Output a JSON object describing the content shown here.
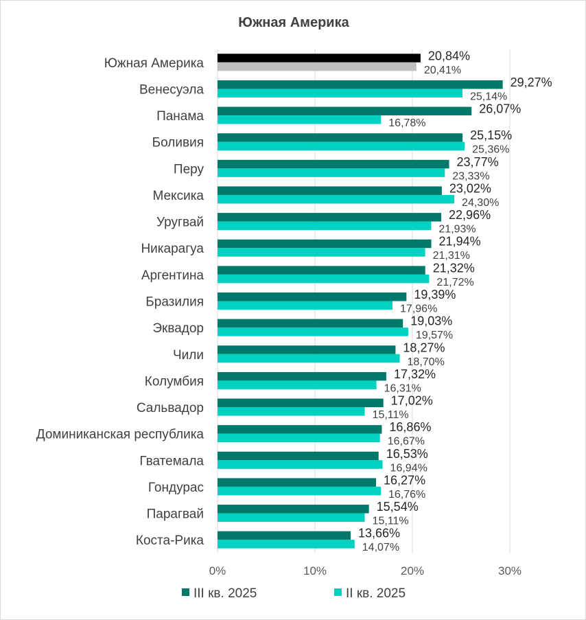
{
  "chart_data": {
    "type": "bar",
    "orientation": "horizontal",
    "title": "Южная Америка",
    "categories": [
      "Южная Америка",
      "Венесуэла",
      "Панама",
      "Боливия",
      "Перу",
      "Мексика",
      "Уругвай",
      "Никарагуа",
      "Аргентина",
      "Бразилия",
      "Эквадор",
      "Чили",
      "Колумбия",
      "Сальвадор",
      "Доминиканская республика",
      "Гватемала",
      "Гондурас",
      "Парагвай",
      "Коста-Рика"
    ],
    "series": [
      {
        "name": "III кв. 2025",
        "color": "#00796b",
        "highlight_color": "#000000",
        "values": [
          20.84,
          29.27,
          26.07,
          25.15,
          23.77,
          23.02,
          22.96,
          21.94,
          21.32,
          19.39,
          19.03,
          18.27,
          17.32,
          17.02,
          16.86,
          16.53,
          16.27,
          15.54,
          13.66
        ],
        "labels": [
          "20,84%",
          "29,27%",
          "26,07%",
          "25,15%",
          "23,77%",
          "23,02%",
          "22,96%",
          "21,94%",
          "21,32%",
          "19,39%",
          "19,03%",
          "18,27%",
          "17,32%",
          "17,02%",
          "16,86%",
          "16,53%",
          "16,27%",
          "15,54%",
          "13,66%"
        ]
      },
      {
        "name": "II кв. 2025",
        "color": "#00d1c1",
        "highlight_color": "#bfbfbf",
        "values": [
          20.41,
          25.14,
          16.78,
          25.36,
          23.33,
          24.3,
          21.93,
          21.31,
          21.72,
          17.96,
          19.57,
          18.7,
          16.31,
          15.11,
          16.67,
          16.94,
          16.76,
          15.11,
          14.07
        ],
        "labels": [
          "20,41%",
          "25,14%",
          "16,78%",
          "25,36%",
          "23,33%",
          "24,30%",
          "21,93%",
          "21,31%",
          "21,72%",
          "17,96%",
          "19,57%",
          "18,70%",
          "16,31%",
          "15,11%",
          "16,67%",
          "16,94%",
          "16,76%",
          "15,11%",
          "14,07%"
        ]
      }
    ],
    "xlim": [
      0,
      30
    ],
    "xticks": [
      0,
      10,
      20,
      30
    ],
    "xtick_labels": [
      "0%",
      "10%",
      "20%",
      "30%"
    ],
    "grid": "vertical",
    "legend": "bottom"
  }
}
